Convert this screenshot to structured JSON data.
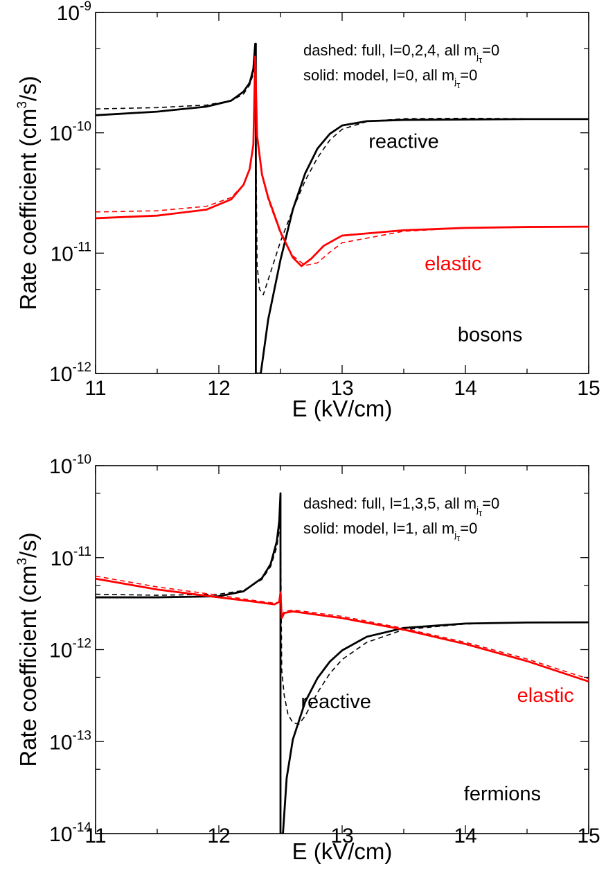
{
  "chart_data": [
    {
      "type": "line",
      "name": "bosons-panel",
      "xlabel": "E (kV/cm)",
      "ylabel_main": "Rate coefficient (cm",
      "ylabel_sup": "3",
      "ylabel_tail": "/s)",
      "xlim": [
        11,
        15
      ],
      "ylim": [
        1e-12,
        1e-09
      ],
      "yscale": "log",
      "x_ticks": [
        11,
        12,
        13,
        14,
        15
      ],
      "x_tick_labels": [
        "11",
        "12",
        "13",
        "14",
        "15"
      ],
      "y_ticks": [
        1e-12,
        1e-11,
        1e-10,
        1e-09
      ],
      "y_tick_base": "10",
      "y_tick_exps": [
        "-12",
        "-11",
        "-10",
        "-9"
      ],
      "legend": [
        {
          "text": "dashed: full, l=0,2,4, all m",
          "sub": "j",
          "subsub": "τ",
          "tail": "=0",
          "style": "dashed"
        },
        {
          "text": "solid: model, l=0, all m",
          "sub": "j",
          "subsub": "τ",
          "tail": "=0",
          "style": "solid"
        }
      ],
      "annotations": [
        {
          "text": "reactive",
          "x": 13.5,
          "y": 7.5e-11,
          "color": "#000000"
        },
        {
          "text": "elastic",
          "x": 13.9,
          "y": 7.2e-12,
          "color": "#ff0000"
        },
        {
          "text": "bosons",
          "x": 14.2,
          "y": 1.85e-12,
          "color": "#000000"
        }
      ],
      "series": [
        {
          "color": "#000000",
          "dash": false,
          "x": [
            11,
            11.5,
            11.9,
            12.1,
            12.2,
            12.25,
            12.28,
            12.295,
            12.3,
            12.3,
            12.34,
            12.4,
            12.5,
            12.6,
            12.7,
            12.8,
            12.9,
            13.0,
            13.2,
            13.5,
            14.0,
            14.5,
            15
          ],
          "y": [
            1.4e-10,
            1.5e-10,
            1.65e-10,
            1.85e-10,
            2.2e-10,
            2.6e-10,
            3.4e-10,
            5.5e-10,
            5.5e-10,
            1e-12,
            1e-12,
            2.8e-12,
            8.8e-12,
            2.3e-11,
            4.6e-11,
            7.4e-11,
            9.8e-11,
            1.15e-10,
            1.25e-10,
            1.28e-10,
            1.29e-10,
            1.3e-10,
            1.3e-10
          ]
        },
        {
          "color": "#000000",
          "dash": true,
          "x": [
            11,
            11.5,
            11.9,
            12.1,
            12.2,
            12.25,
            12.28,
            12.295,
            12.31,
            12.33,
            12.36,
            12.4,
            12.5,
            12.6,
            12.7,
            12.8,
            12.9,
            13.0,
            13.2,
            13.5,
            14.0,
            14.5,
            15
          ],
          "y": [
            1.58e-10,
            1.62e-10,
            1.7e-10,
            1.85e-10,
            2.1e-10,
            2.5e-10,
            3.1e-10,
            3.5e-10,
            8e-12,
            5e-12,
            4.5e-12,
            6e-12,
            1.25e-11,
            2.3e-11,
            4e-11,
            6.2e-11,
            8.7e-11,
            1.07e-10,
            1.24e-10,
            1.31e-10,
            1.32e-10,
            1.31e-10,
            1.3e-10
          ]
        },
        {
          "color": "#ff0000",
          "dash": false,
          "x": [
            11,
            11.5,
            11.9,
            12.1,
            12.2,
            12.25,
            12.28,
            12.295,
            12.31,
            12.35,
            12.4,
            12.5,
            12.6,
            12.67,
            12.75,
            12.85,
            13.0,
            13.5,
            14.0,
            14.5,
            15
          ],
          "y": [
            1.95e-11,
            2.05e-11,
            2.3e-11,
            2.8e-11,
            3.7e-11,
            5e-11,
            8e-11,
            4.3e-10,
            9.5e-11,
            4.5e-11,
            2.9e-11,
            1.5e-11,
            9.2e-12,
            7.8e-12,
            9e-12,
            1.15e-11,
            1.4e-11,
            1.55e-11,
            1.62e-11,
            1.65e-11,
            1.66e-11
          ]
        },
        {
          "color": "#ff0000",
          "dash": true,
          "x": [
            11,
            11.5,
            11.9,
            12.1,
            12.2,
            12.25,
            12.28,
            12.295,
            12.31,
            12.35,
            12.4,
            12.5,
            12.6,
            12.7,
            12.8,
            12.9,
            13.0,
            13.5,
            14.0,
            14.5,
            15
          ],
          "y": [
            2.2e-11,
            2.25e-11,
            2.45e-11,
            2.9e-11,
            3.7e-11,
            5e-11,
            8e-11,
            4.3e-10,
            9.5e-11,
            4.4e-11,
            2.8e-11,
            1.45e-11,
            9.5e-12,
            7.9e-12,
            8.3e-12,
            1.02e-11,
            1.22e-11,
            1.52e-11,
            1.62e-11,
            1.65e-11,
            1.66e-11
          ]
        }
      ]
    },
    {
      "type": "line",
      "name": "fermions-panel",
      "xlabel": "E (kV/cm)",
      "ylabel_main": "Rate coefficient (cm",
      "ylabel_sup": "3",
      "ylabel_tail": "/s)",
      "xlim": [
        11,
        15
      ],
      "ylim": [
        1e-14,
        1e-10
      ],
      "yscale": "log",
      "x_ticks": [
        11,
        12,
        13,
        14,
        15
      ],
      "x_tick_labels": [
        "11",
        "12",
        "13",
        "14",
        "15"
      ],
      "y_ticks": [
        1e-14,
        1e-13,
        1e-12,
        1e-11,
        1e-10
      ],
      "y_tick_base": "10",
      "y_tick_exps": [
        "-14",
        "-13",
        "-12",
        "-11",
        "-10"
      ],
      "legend": [
        {
          "text": "dashed: full, l=1,3,5, all m",
          "sub": "j",
          "subsub": "τ",
          "tail": "=0",
          "style": "dashed"
        },
        {
          "text": "solid: model, l=1, all m",
          "sub": "j",
          "subsub": "τ",
          "tail": "=0",
          "style": "solid"
        }
      ],
      "annotations": [
        {
          "text": "reactive",
          "x": 12.95,
          "y": 2.3e-13,
          "color": "#000000"
        },
        {
          "text": "elastic",
          "x": 14.65,
          "y": 2.7e-13,
          "color": "#ff0000"
        },
        {
          "text": "fermions",
          "x": 14.3,
          "y": 2.3e-14,
          "color": "#000000"
        }
      ],
      "series": [
        {
          "color": "#000000",
          "dash": false,
          "x": [
            11,
            11.5,
            12.0,
            12.2,
            12.35,
            12.42,
            12.47,
            12.49,
            12.5,
            12.5,
            12.52,
            12.55,
            12.6,
            12.7,
            12.8,
            12.9,
            13.0,
            13.2,
            13.5,
            14.0,
            14.5,
            15
          ],
          "y": [
            3.7e-12,
            3.7e-12,
            3.8e-12,
            4.3e-12,
            6e-12,
            8.5e-12,
            1.5e-11,
            2.5e-11,
            5e-11,
            1e-14,
            1e-14,
            4e-14,
            1.05e-13,
            2.7e-13,
            4.9e-13,
            7.4e-13,
            9.8e-13,
            1.38e-12,
            1.72e-12,
            1.92e-12,
            1.97e-12,
            1.98e-12
          ]
        },
        {
          "color": "#000000",
          "dash": true,
          "x": [
            11,
            11.5,
            12.0,
            12.2,
            12.35,
            12.42,
            12.47,
            12.49,
            12.5,
            12.51,
            12.53,
            12.56,
            12.6,
            12.65,
            12.7,
            12.8,
            12.9,
            13.0,
            13.2,
            13.5,
            14.0,
            14.5,
            15
          ],
          "y": [
            4e-12,
            3.9e-12,
            4e-12,
            4.4e-12,
            5.8e-12,
            8e-12,
            1.3e-11,
            2e-11,
            2.6e-11,
            6e-13,
            3.2e-13,
            2e-13,
            1.6e-13,
            1.55e-13,
            1.9e-13,
            3.4e-13,
            5.5e-13,
            7.8e-13,
            1.2e-12,
            1.65e-12,
            1.9e-12,
            1.97e-12,
            1.98e-12
          ]
        },
        {
          "color": "#ff0000",
          "dash": false,
          "x": [
            11,
            11.5,
            12.0,
            12.3,
            12.45,
            12.49,
            12.5,
            12.51,
            12.53,
            12.6,
            13.0,
            13.5,
            14.0,
            14.5,
            15
          ],
          "y": [
            5.9e-12,
            4.5e-12,
            3.7e-12,
            3.3e-12,
            3.1e-12,
            3.3e-12,
            4.2e-12,
            2.2e-12,
            2.5e-12,
            2.6e-12,
            2.2e-12,
            1.65e-12,
            1.15e-12,
            7.5e-13,
            4.5e-13
          ]
        },
        {
          "color": "#ff0000",
          "dash": true,
          "x": [
            11,
            11.5,
            12.0,
            12.3,
            12.45,
            12.49,
            12.5,
            12.51,
            12.53,
            12.6,
            13.0,
            13.5,
            14.0,
            14.5,
            15
          ],
          "y": [
            6.3e-12,
            4.8e-12,
            3.9e-12,
            3.4e-12,
            3.2e-12,
            3.3e-12,
            4e-12,
            2.3e-12,
            2.6e-12,
            2.7e-12,
            2.3e-12,
            1.7e-12,
            1.2e-12,
            7.9e-13,
            4.8e-13
          ]
        }
      ]
    }
  ]
}
